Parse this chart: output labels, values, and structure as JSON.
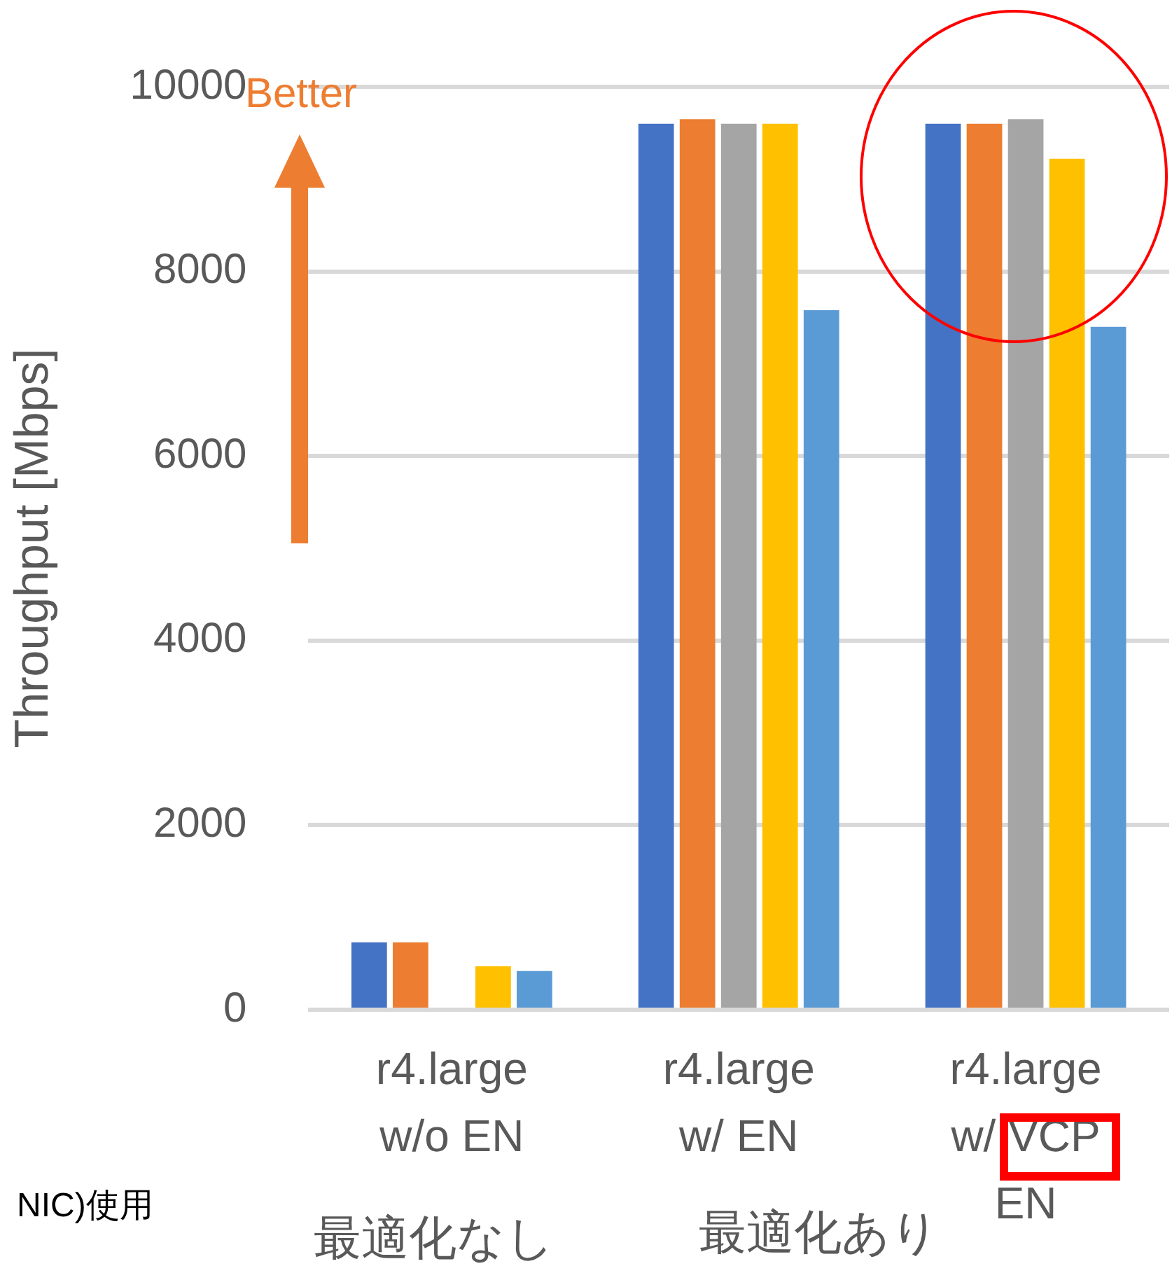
{
  "chart_data": {
    "type": "bar",
    "ylabel": "Throughput [Mbps]",
    "categories": [
      "r4.large\nw/o EN",
      "r4.large\nw/ EN",
      "r4.large\nw/ VCP\nEN"
    ],
    "series": [
      {
        "color": "#4472c4",
        "values": [
          730,
          9600,
          9600
        ]
      },
      {
        "color": "#ed7d31",
        "values": [
          730,
          9650,
          9600
        ]
      },
      {
        "color": "#a5a5a5",
        "values": [
          null,
          9600,
          9650
        ]
      },
      {
        "color": "#ffc000",
        "values": [
          470,
          9600,
          9220
        ]
      },
      {
        "color": "#5b9bd5",
        "values": [
          420,
          7580,
          7400
        ]
      }
    ],
    "ylim": [
      0,
      10000
    ],
    "yticks": [
      0,
      2000,
      4000,
      6000,
      8000,
      10000
    ],
    "grid": "y",
    "legend": false,
    "annotations": [
      "Better",
      "最適化なし",
      "最適化あり",
      "NIC)使用"
    ]
  }
}
